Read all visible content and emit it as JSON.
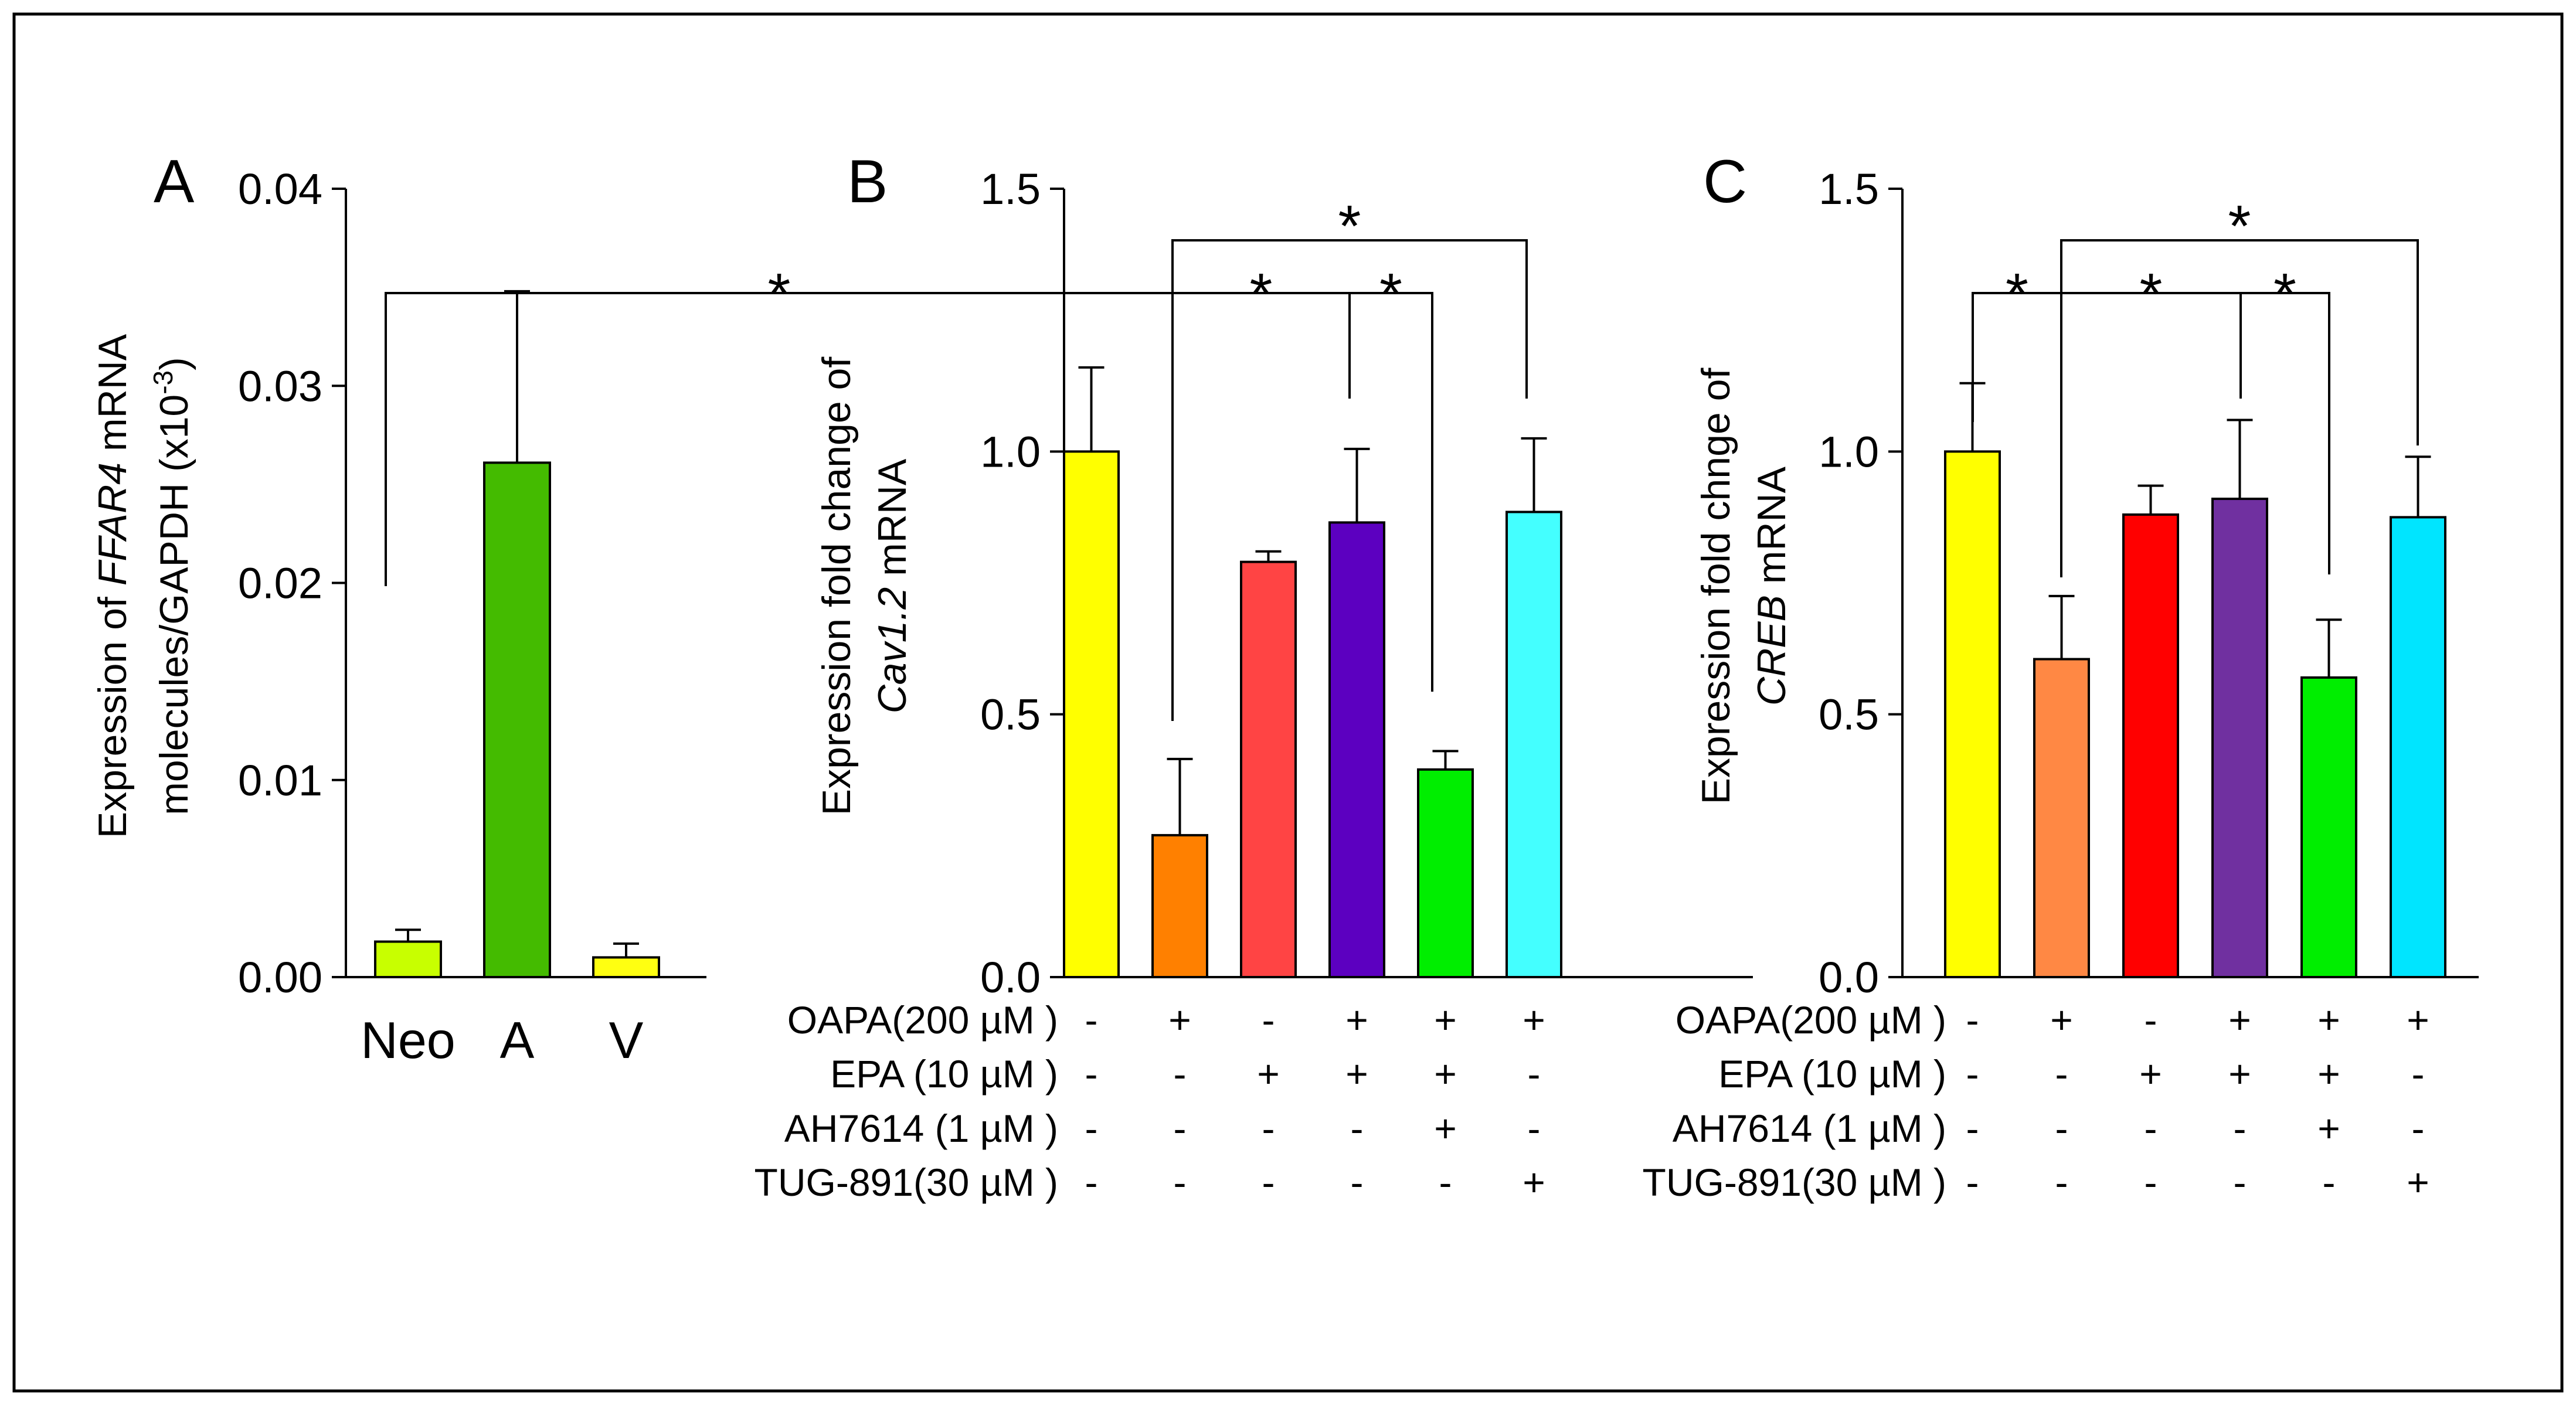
{
  "chart_data": [
    {
      "type": "bar",
      "panel_label": "A",
      "categories": [
        "Neo",
        "A",
        "V"
      ],
      "values": [
        0.0018,
        0.0261,
        0.001
      ],
      "errors": [
        0.0006,
        0.0087,
        0.0007
      ],
      "colors": [
        "#c8ff00",
        "#44bb00",
        "#ffff11"
      ],
      "ylabel_lines": [
        {
          "parts": [
            {
              "text": "Expression of ",
              "italic": false
            },
            {
              "text": "FFAR4",
              "italic": true
            },
            {
              "text": " mRNA",
              "italic": false
            }
          ]
        },
        {
          "parts": [
            {
              "text": "molecules/GAPDH (x10",
              "italic": false
            },
            {
              "text": "-3",
              "italic": false,
              "sup": true
            },
            {
              "text": ")",
              "italic": false
            }
          ]
        }
      ],
      "ylim": [
        0,
        0.04
      ],
      "yticks": [
        "0.00",
        "0.01",
        "0.02",
        "0.03",
        "0.04"
      ]
    },
    {
      "type": "bar",
      "panel_label": "B",
      "values": [
        1.0,
        0.27,
        0.79,
        0.865,
        0.395,
        0.885
      ],
      "errors": [
        0.16,
        0.145,
        0.02,
        0.14,
        0.035,
        0.14
      ],
      "colors": [
        "#ffff00",
        "#ff8000",
        "#ff4444",
        "#5c00c0",
        "#00ee00",
        "#44ffff"
      ],
      "ylabel_lines": [
        {
          "parts": [
            {
              "text": "Expression fold change of",
              "italic": false
            }
          ]
        },
        {
          "parts": [
            {
              "text": "Cav1.2",
              "italic": true
            },
            {
              "text": " mRNA",
              "italic": false
            }
          ]
        }
      ],
      "ylim": [
        0,
        1.5
      ],
      "yticks": [
        "0.0",
        "0.5",
        "1.0",
        "1.5"
      ],
      "conditions": [
        {
          "label": "OAPA(200 µM )",
          "marks": [
            "-",
            "+",
            "-",
            "+",
            "+",
            "+"
          ]
        },
        {
          "label": "EPA (10 µM )",
          "marks": [
            "-",
            "-",
            "+",
            "+",
            "+",
            "-"
          ]
        },
        {
          "label": "AH7614 (1 µM )",
          "marks": [
            "-",
            "-",
            "-",
            "-",
            "+",
            "-"
          ]
        },
        {
          "label": "TUG-891(30 µM )",
          "marks": [
            "-",
            "-",
            "-",
            "-",
            "-",
            "+"
          ]
        }
      ],
      "significance": [
        {
          "from": 0,
          "to": 1,
          "label": "*"
        },
        {
          "from": 1,
          "to": 3,
          "label": "*"
        },
        {
          "from": 3,
          "to": 4,
          "label": "*"
        },
        {
          "from": 1,
          "to": 5,
          "label": "*"
        }
      ]
    },
    {
      "type": "bar",
      "panel_label": "C",
      "values": [
        1.0,
        0.605,
        0.88,
        0.91,
        0.57,
        0.875
      ],
      "errors": [
        0.13,
        0.12,
        0.055,
        0.15,
        0.11,
        0.115
      ],
      "colors": [
        "#ffff00",
        "#ff8844",
        "#ff0000",
        "#7030a0",
        "#00ee00",
        "#00e5ff"
      ],
      "ylabel_lines": [
        {
          "parts": [
            {
              "text": "Expression fold chnge of",
              "italic": false
            }
          ]
        },
        {
          "parts": [
            {
              "text": "CREB",
              "italic": true
            },
            {
              "text": " mRNA",
              "italic": false
            }
          ]
        }
      ],
      "ylim": [
        0,
        1.5
      ],
      "yticks": [
        "0.0",
        "0.5",
        "1.0",
        "1.5"
      ],
      "conditions": [
        {
          "label": "OAPA(200 µM )",
          "marks": [
            "-",
            "+",
            "-",
            "+",
            "+",
            "+"
          ]
        },
        {
          "label": "EPA (10 µM )",
          "marks": [
            "-",
            "-",
            "+",
            "+",
            "+",
            "-"
          ]
        },
        {
          "label": "AH7614 (1 µM )",
          "marks": [
            "-",
            "-",
            "-",
            "-",
            "+",
            "-"
          ]
        },
        {
          "label": "TUG-891(30 µM )",
          "marks": [
            "-",
            "-",
            "-",
            "-",
            "-",
            "+"
          ]
        }
      ],
      "significance": [
        {
          "from": 0,
          "to": 1,
          "label": "*"
        },
        {
          "from": 1,
          "to": 3,
          "label": "*"
        },
        {
          "from": 3,
          "to": 4,
          "label": "*"
        },
        {
          "from": 1,
          "to": 5,
          "label": "*"
        }
      ]
    }
  ]
}
